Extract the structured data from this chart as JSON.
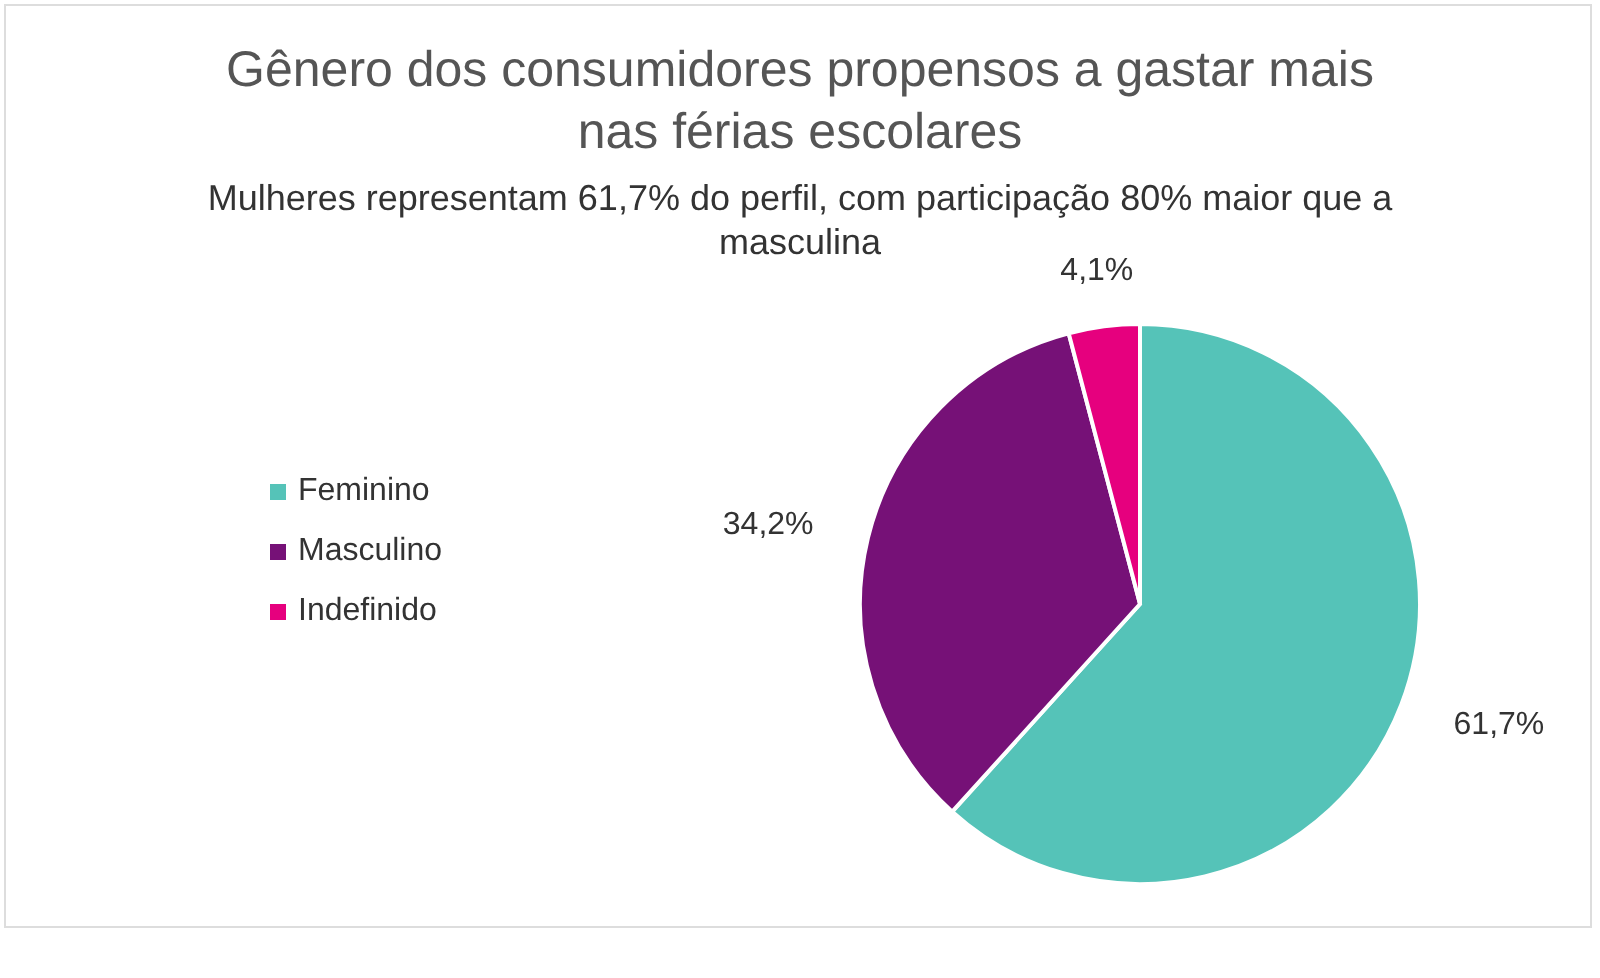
{
  "chart_data": {
    "type": "pie",
    "title": "Gênero dos consumidores propensos a gastar mais nas férias escolares",
    "subtitle": "Mulheres representam 61,7% do perfil, com participação 80% maior que a masculina",
    "categories": [
      "Feminino",
      "Masculino",
      "Indefinido"
    ],
    "values": [
      61.7,
      34.2,
      4.1
    ],
    "value_labels": [
      "61,7%",
      "34,2%",
      "4,1%"
    ],
    "colors": [
      "#55c3b8",
      "#761177",
      "#e6007e"
    ],
    "legend": "left"
  }
}
